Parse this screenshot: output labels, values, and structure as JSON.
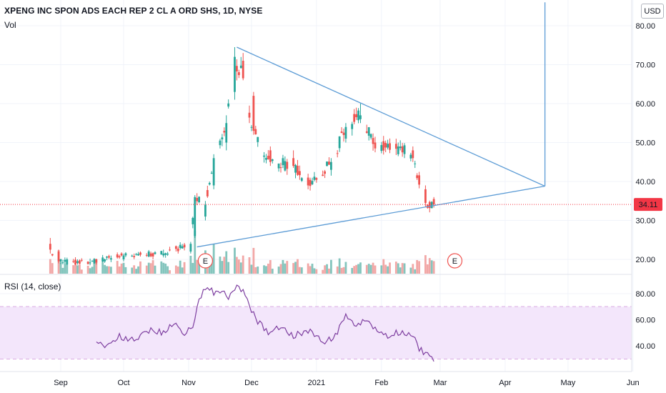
{
  "header": {
    "symbol_line": "XPENG INC SPON ADS EACH REP 2 CL A ORD SHS, 1D, NYSE",
    "volume_label": "Vol",
    "currency": "USD"
  },
  "price_badge": {
    "value": "34.11",
    "color": "#f23645"
  },
  "colors": {
    "up": "#26a69a",
    "down": "#ef5350",
    "vol_up": "#84c5bd",
    "vol_down": "#f2a7a6",
    "trendline": "#5b9bd5",
    "rsi_line": "#7e3fa0",
    "rsi_band": "#f3e6fb",
    "rsi_dash": "#ba68c8",
    "earnings": "#ef5350"
  },
  "chart_data": [
    {
      "type": "candlestick",
      "title": "XPENG INC SPON ADS EACH REP 2 CL A ORD SHS, 1D, NYSE",
      "interval": "1D",
      "exchange": "NYSE",
      "x_axis": {
        "ticks": [
          "Sep",
          "Oct",
          "Nov",
          "Dec",
          "2021",
          "Feb",
          "Mar",
          "Apr",
          "May",
          "Jun"
        ]
      },
      "y_axis": {
        "ticks": [
          "80.00",
          "70.00",
          "60.00",
          "50.00",
          "40.00",
          "30.00",
          "20.00"
        ],
        "range": [
          16.5,
          86
        ]
      },
      "last_price": 34.11,
      "candles_approx": [
        {
          "d": "2020-08-27",
          "o": 24,
          "h": 25.5,
          "l": 21.5,
          "c": 22.5
        },
        {
          "d": "2020-08-31",
          "o": 22,
          "h": 22.5,
          "l": 19,
          "c": 19.5
        },
        {
          "d": "2020-09-15",
          "o": 19,
          "h": 20.2,
          "l": 18.5,
          "c": 19.2
        },
        {
          "d": "2020-10-01",
          "o": 20,
          "h": 21.5,
          "l": 19.5,
          "c": 21
        },
        {
          "d": "2020-10-20",
          "o": 21,
          "h": 22.5,
          "l": 20.5,
          "c": 21.5
        },
        {
          "d": "2020-11-02",
          "o": 22,
          "h": 24.5,
          "l": 21.5,
          "c": 24
        },
        {
          "d": "2020-11-04",
          "o": 26,
          "h": 36.5,
          "l": 25.5,
          "c": 36
        },
        {
          "d": "2020-11-09",
          "o": 31,
          "h": 35,
          "l": 30,
          "c": 34
        },
        {
          "d": "2020-11-13",
          "o": 39,
          "h": 47,
          "l": 38,
          "c": 46
        },
        {
          "d": "2020-11-19",
          "o": 50,
          "h": 57,
          "l": 48,
          "c": 55
        },
        {
          "d": "2020-11-23",
          "o": 63,
          "h": 74.5,
          "l": 61,
          "c": 72
        },
        {
          "d": "2020-11-27",
          "o": 71,
          "h": 73,
          "l": 66,
          "c": 66.5
        },
        {
          "d": "2020-12-02",
          "o": 62,
          "h": 63,
          "l": 52,
          "c": 53
        },
        {
          "d": "2020-12-10",
          "o": 48,
          "h": 49,
          "l": 44,
          "c": 45
        },
        {
          "d": "2020-12-21",
          "o": 46,
          "h": 48,
          "l": 43.5,
          "c": 44
        },
        {
          "d": "2020-12-28",
          "o": 41,
          "h": 42,
          "l": 38,
          "c": 39
        },
        {
          "d": "2021-01-08",
          "o": 43,
          "h": 46,
          "l": 41.5,
          "c": 45
        },
        {
          "d": "2021-01-15",
          "o": 51,
          "h": 55,
          "l": 50,
          "c": 54
        },
        {
          "d": "2021-01-22",
          "o": 56,
          "h": 60,
          "l": 55,
          "c": 57
        },
        {
          "d": "2021-01-29",
          "o": 50,
          "h": 51.5,
          "l": 47.5,
          "c": 48.5
        },
        {
          "d": "2021-02-09",
          "o": 47,
          "h": 50,
          "l": 46.5,
          "c": 49
        },
        {
          "d": "2021-02-16",
          "o": 48,
          "h": 49,
          "l": 45,
          "c": 46
        },
        {
          "d": "2021-02-22",
          "o": 38,
          "h": 39,
          "l": 33.5,
          "c": 34.5
        },
        {
          "d": "2021-02-26",
          "o": 35.5,
          "h": 36,
          "l": 33.3,
          "c": 34.11
        }
      ],
      "earnings_markers": [
        {
          "d": "2020-11-09",
          "label": "E"
        },
        {
          "d": "2021-03-08",
          "label": "E"
        }
      ],
      "volume_label": "Vol",
      "trendlines": [
        {
          "label": "upper",
          "from": {
            "d": "2020-11-24",
            "v": 74.5
          },
          "to": {
            "d": "2021-04-20",
            "v": 38.8
          }
        },
        {
          "label": "lower",
          "from": {
            "d": "2020-11-05",
            "v": 23.2
          },
          "to": {
            "d": "2021-04-20",
            "v": 38.8
          }
        },
        {
          "label": "vertical",
          "from": {
            "d": "2021-04-20",
            "v": 38.8
          },
          "to": {
            "d": "2021-04-20",
            "v": 86
          }
        }
      ]
    },
    {
      "type": "line",
      "title": "RSI (14, close)",
      "y_axis": {
        "ticks": [
          "80.00",
          "60.00",
          "40.00"
        ],
        "range": [
          25,
          93
        ]
      },
      "band": [
        30,
        70
      ],
      "series": [
        {
          "name": "RSI",
          "points_approx": [
            {
              "d": "2020-09-18",
              "v": 43
            },
            {
              "d": "2020-09-23",
              "v": 40
            },
            {
              "d": "2020-09-29",
              "v": 47
            },
            {
              "d": "2020-10-06",
              "v": 44
            },
            {
              "d": "2020-10-13",
              "v": 52
            },
            {
              "d": "2020-10-20",
              "v": 50
            },
            {
              "d": "2020-10-26",
              "v": 59
            },
            {
              "d": "2020-10-30",
              "v": 48
            },
            {
              "d": "2020-11-03",
              "v": 55
            },
            {
              "d": "2020-11-06",
              "v": 75
            },
            {
              "d": "2020-11-10",
              "v": 87
            },
            {
              "d": "2020-11-13",
              "v": 80
            },
            {
              "d": "2020-11-17",
              "v": 84
            },
            {
              "d": "2020-11-20",
              "v": 75
            },
            {
              "d": "2020-11-24",
              "v": 88
            },
            {
              "d": "2020-11-27",
              "v": 82
            },
            {
              "d": "2020-12-03",
              "v": 60
            },
            {
              "d": "2020-12-09",
              "v": 50
            },
            {
              "d": "2020-12-15",
              "v": 55
            },
            {
              "d": "2020-12-21",
              "v": 48
            },
            {
              "d": "2020-12-28",
              "v": 52
            },
            {
              "d": "2021-01-05",
              "v": 42
            },
            {
              "d": "2021-01-11",
              "v": 50
            },
            {
              "d": "2021-01-15",
              "v": 63
            },
            {
              "d": "2021-01-20",
              "v": 55
            },
            {
              "d": "2021-01-25",
              "v": 60
            },
            {
              "d": "2021-01-29",
              "v": 52
            },
            {
              "d": "2021-02-04",
              "v": 48
            },
            {
              "d": "2021-02-10",
              "v": 51
            },
            {
              "d": "2021-02-16",
              "v": 48
            },
            {
              "d": "2021-02-19",
              "v": 38
            },
            {
              "d": "2021-02-23",
              "v": 33
            },
            {
              "d": "2021-02-26",
              "v": 28
            }
          ]
        }
      ]
    }
  ]
}
